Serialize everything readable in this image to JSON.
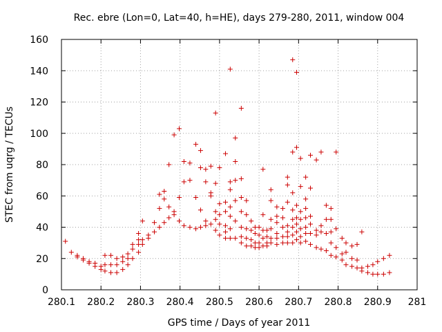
{
  "chart_data": {
    "type": "scatter",
    "title": "Rec. ebre (Lon=0, Lat=40, h=HE), days 279-280, 2011, window 004",
    "xlabel": "GPS time / Days of year 2011",
    "ylabel": "STEC from uqrg / TECUs",
    "xlim": [
      280.1,
      281.0
    ],
    "ylim": [
      0,
      160
    ],
    "xticks": [
      "280.1",
      "280.2",
      "280.3",
      "280.4",
      "280.5",
      "280.6",
      "280.7",
      "280.8",
      "280.9",
      "281"
    ],
    "yticks": [
      "0",
      "20",
      "40",
      "60",
      "80",
      "100",
      "120",
      "140",
      "160"
    ],
    "grid": true,
    "marker": "+",
    "color": "#cc0000",
    "points": [
      [
        280.11,
        31
      ],
      [
        280.125,
        24
      ],
      [
        280.14,
        22
      ],
      [
        280.14,
        21
      ],
      [
        280.155,
        20
      ],
      [
        280.155,
        19
      ],
      [
        280.17,
        18
      ],
      [
        280.17,
        17
      ],
      [
        280.185,
        17
      ],
      [
        280.185,
        15
      ],
      [
        280.2,
        15
      ],
      [
        280.2,
        13
      ],
      [
        280.21,
        22
      ],
      [
        280.21,
        16
      ],
      [
        280.21,
        12
      ],
      [
        280.225,
        22
      ],
      [
        280.225,
        16
      ],
      [
        280.225,
        11
      ],
      [
        280.24,
        20
      ],
      [
        280.24,
        16
      ],
      [
        280.24,
        11
      ],
      [
        280.255,
        21
      ],
      [
        280.255,
        18
      ],
      [
        280.255,
        13
      ],
      [
        280.268,
        23
      ],
      [
        280.268,
        20
      ],
      [
        280.268,
        16
      ],
      [
        280.28,
        29
      ],
      [
        280.28,
        26
      ],
      [
        280.28,
        20
      ],
      [
        280.295,
        36
      ],
      [
        280.295,
        32
      ],
      [
        280.295,
        29
      ],
      [
        280.295,
        24
      ],
      [
        280.305,
        44
      ],
      [
        280.305,
        32
      ],
      [
        280.305,
        29
      ],
      [
        280.32,
        35
      ],
      [
        280.32,
        33
      ],
      [
        280.335,
        43
      ],
      [
        280.335,
        37
      ],
      [
        280.348,
        61
      ],
      [
        280.348,
        52
      ],
      [
        280.348,
        40
      ],
      [
        280.36,
        63
      ],
      [
        280.36,
        58
      ],
      [
        280.36,
        43
      ],
      [
        280.372,
        80
      ],
      [
        280.372,
        53
      ],
      [
        280.372,
        46
      ],
      [
        280.385,
        99
      ],
      [
        280.385,
        50
      ],
      [
        280.385,
        48
      ],
      [
        280.398,
        103
      ],
      [
        280.398,
        59
      ],
      [
        280.398,
        44
      ],
      [
        280.41,
        82
      ],
      [
        280.41,
        69
      ],
      [
        280.41,
        41
      ],
      [
        280.425,
        81
      ],
      [
        280.425,
        70
      ],
      [
        280.425,
        40
      ],
      [
        280.44,
        93
      ],
      [
        280.44,
        59
      ],
      [
        280.44,
        39
      ],
      [
        280.452,
        89
      ],
      [
        280.452,
        78
      ],
      [
        280.452,
        51
      ],
      [
        280.452,
        40
      ],
      [
        280.465,
        77
      ],
      [
        280.465,
        69
      ],
      [
        280.465,
        44
      ],
      [
        280.465,
        41
      ],
      [
        280.478,
        79
      ],
      [
        280.478,
        62
      ],
      [
        280.478,
        42
      ],
      [
        280.478,
        60
      ],
      [
        280.49,
        113
      ],
      [
        280.49,
        68
      ],
      [
        280.49,
        50
      ],
      [
        280.49,
        45
      ],
      [
        280.49,
        38
      ],
      [
        280.5,
        78
      ],
      [
        280.5,
        55
      ],
      [
        280.5,
        48
      ],
      [
        280.5,
        42
      ],
      [
        280.5,
        35
      ],
      [
        280.515,
        87
      ],
      [
        280.515,
        56
      ],
      [
        280.515,
        50
      ],
      [
        280.515,
        41
      ],
      [
        280.515,
        37
      ],
      [
        280.515,
        33
      ],
      [
        280.527,
        141
      ],
      [
        280.527,
        69
      ],
      [
        280.527,
        64
      ],
      [
        280.527,
        53
      ],
      [
        280.527,
        47
      ],
      [
        280.527,
        39
      ],
      [
        280.527,
        33
      ],
      [
        280.54,
        97
      ],
      [
        280.54,
        82
      ],
      [
        280.54,
        70
      ],
      [
        280.54,
        57
      ],
      [
        280.54,
        44
      ],
      [
        280.54,
        33
      ],
      [
        280.555,
        116
      ],
      [
        280.555,
        71
      ],
      [
        280.555,
        59
      ],
      [
        280.555,
        50
      ],
      [
        280.555,
        40
      ],
      [
        280.555,
        34
      ],
      [
        280.555,
        30
      ],
      [
        280.568,
        57
      ],
      [
        280.568,
        48
      ],
      [
        280.568,
        39
      ],
      [
        280.568,
        33
      ],
      [
        280.568,
        28
      ],
      [
        280.58,
        44
      ],
      [
        280.58,
        38
      ],
      [
        280.58,
        32
      ],
      [
        280.58,
        28
      ],
      [
        280.59,
        40
      ],
      [
        280.59,
        36
      ],
      [
        280.59,
        30
      ],
      [
        280.59,
        27
      ],
      [
        280.6,
        40
      ],
      [
        280.6,
        35
      ],
      [
        280.6,
        30
      ],
      [
        280.6,
        27
      ],
      [
        280.61,
        77
      ],
      [
        280.61,
        48
      ],
      [
        280.61,
        38
      ],
      [
        280.61,
        33
      ],
      [
        280.61,
        28
      ],
      [
        280.62,
        38
      ],
      [
        280.62,
        34
      ],
      [
        280.62,
        30
      ],
      [
        280.62,
        28
      ],
      [
        280.63,
        64
      ],
      [
        280.63,
        57
      ],
      [
        280.63,
        45
      ],
      [
        280.63,
        39
      ],
      [
        280.63,
        33
      ],
      [
        280.63,
        30
      ],
      [
        280.645,
        53
      ],
      [
        280.645,
        47
      ],
      [
        280.645,
        43
      ],
      [
        280.645,
        36
      ],
      [
        280.645,
        33
      ],
      [
        280.645,
        29
      ],
      [
        280.66,
        52
      ],
      [
        280.66,
        46
      ],
      [
        280.66,
        40
      ],
      [
        280.66,
        34
      ],
      [
        280.66,
        30
      ],
      [
        280.672,
        72
      ],
      [
        280.672,
        67
      ],
      [
        280.672,
        56
      ],
      [
        280.672,
        41
      ],
      [
        280.672,
        37
      ],
      [
        280.672,
        34
      ],
      [
        280.672,
        30
      ],
      [
        280.685,
        147
      ],
      [
        280.685,
        88
      ],
      [
        280.685,
        62
      ],
      [
        280.685,
        51
      ],
      [
        280.685,
        45
      ],
      [
        280.685,
        40
      ],
      [
        280.685,
        35
      ],
      [
        280.685,
        30
      ],
      [
        280.695,
        139
      ],
      [
        280.695,
        91
      ],
      [
        280.695,
        54
      ],
      [
        280.695,
        46
      ],
      [
        280.695,
        42
      ],
      [
        280.695,
        37
      ],
      [
        280.695,
        32
      ],
      [
        280.705,
        84
      ],
      [
        280.705,
        66
      ],
      [
        280.705,
        50
      ],
      [
        280.705,
        45
      ],
      [
        280.705,
        39
      ],
      [
        280.705,
        34
      ],
      [
        280.705,
        30
      ],
      [
        280.718,
        72
      ],
      [
        280.718,
        58
      ],
      [
        280.718,
        52
      ],
      [
        280.718,
        46
      ],
      [
        280.718,
        40
      ],
      [
        280.718,
        36
      ],
      [
        280.718,
        31
      ],
      [
        280.73,
        86
      ],
      [
        280.73,
        65
      ],
      [
        280.73,
        47
      ],
      [
        280.73,
        42
      ],
      [
        280.73,
        36
      ],
      [
        280.73,
        29
      ],
      [
        280.745,
        83
      ],
      [
        280.745,
        38
      ],
      [
        280.745,
        35
      ],
      [
        280.745,
        27
      ],
      [
        280.757,
        88
      ],
      [
        280.757,
        41
      ],
      [
        280.757,
        37
      ],
      [
        280.757,
        26
      ],
      [
        280.77,
        54
      ],
      [
        280.77,
        45
      ],
      [
        280.77,
        36
      ],
      [
        280.77,
        25
      ],
      [
        280.782,
        52
      ],
      [
        280.782,
        45
      ],
      [
        280.782,
        37
      ],
      [
        280.782,
        30
      ],
      [
        280.782,
        22
      ],
      [
        280.795,
        88
      ],
      [
        280.795,
        39
      ],
      [
        280.795,
        27
      ],
      [
        280.795,
        21
      ],
      [
        280.81,
        33
      ],
      [
        280.81,
        23
      ],
      [
        280.81,
        19
      ],
      [
        280.82,
        30
      ],
      [
        280.82,
        24
      ],
      [
        280.82,
        16
      ],
      [
        280.835,
        28
      ],
      [
        280.835,
        20
      ],
      [
        280.835,
        15
      ],
      [
        280.848,
        29
      ],
      [
        280.848,
        19
      ],
      [
        280.848,
        14
      ],
      [
        280.86,
        37
      ],
      [
        280.86,
        14
      ],
      [
        280.86,
        12
      ],
      [
        280.875,
        15
      ],
      [
        280.875,
        11
      ],
      [
        280.888,
        16
      ],
      [
        280.888,
        10
      ],
      [
        280.9,
        18
      ],
      [
        280.9,
        10
      ],
      [
        280.915,
        20
      ],
      [
        280.915,
        10
      ],
      [
        280.93,
        22
      ],
      [
        280.93,
        11
      ]
    ]
  }
}
